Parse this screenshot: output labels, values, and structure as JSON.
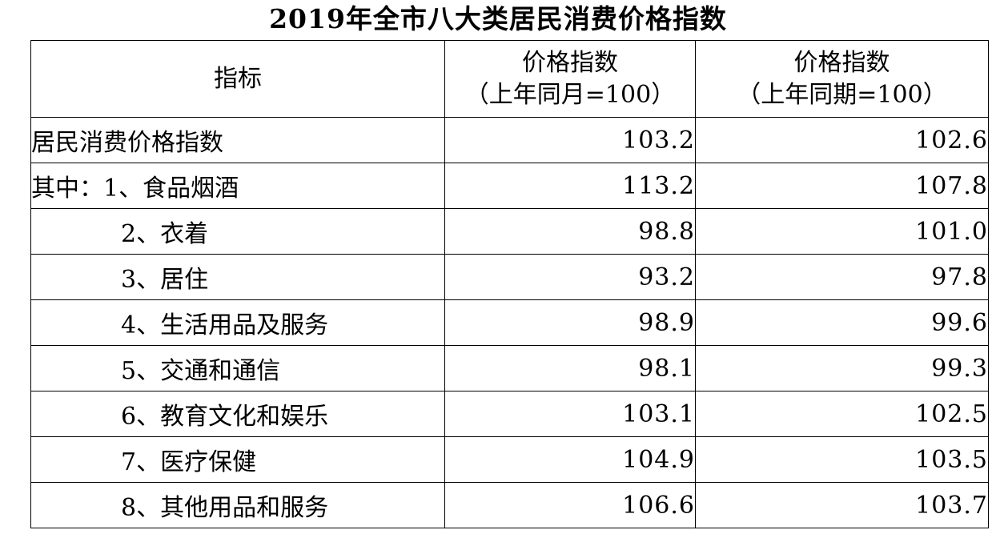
{
  "title": "2019年全市八大类居民消费价格指数",
  "header": {
    "col1": "指标",
    "col2_line1": "价格指数",
    "col2_line2": "（上年同月=100）",
    "col3_line1": "价格指数",
    "col3_line2": "（上年同期=100）"
  },
  "rows": [
    {
      "label": "居民消费价格指数",
      "month": "103.2",
      "period": "102.6"
    },
    {
      "label": "其中：1、食品烟酒",
      "month": "113.2",
      "period": "107.8"
    },
    {
      "label": "2、衣着",
      "month": "98.8",
      "period": "101.0"
    },
    {
      "label": "3、居住",
      "month": "93.2",
      "period": "97.8"
    },
    {
      "label": "4、生活用品及服务",
      "month": "98.9",
      "period": "99.6"
    },
    {
      "label": "5、交通和通信",
      "month": "98.1",
      "period": "99.3"
    },
    {
      "label": "6、教育文化和娱乐",
      "month": "103.1",
      "period": "102.5"
    },
    {
      "label": "7、医疗保健",
      "month": "104.9",
      "period": "103.5"
    },
    {
      "label": "8、其他用品和服务",
      "month": "106.6",
      "period": "103.7"
    }
  ]
}
